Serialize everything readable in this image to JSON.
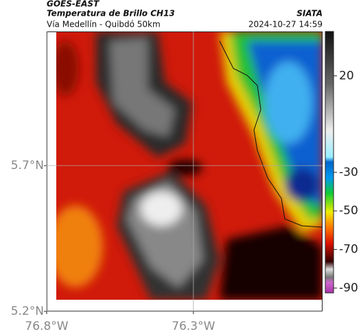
{
  "header": {
    "satellite": "GOES-EAST",
    "product": "Temperatura de Brillo CH13",
    "route": "Vía Medellín - Quibdó 50km",
    "source": "SIATA",
    "timestamp": "2024-10-27 14:59"
  },
  "map": {
    "xlim": [
      -76.8,
      -75.86
    ],
    "ylim": [
      5.2,
      6.16
    ],
    "xticks": [
      {
        "value": -76.8,
        "label": "76.8°W"
      },
      {
        "value": -76.3,
        "label": "76.3°W"
      }
    ],
    "yticks": [
      {
        "value": 5.2,
        "label": "5.2°N"
      },
      {
        "value": 5.7,
        "label": "5.7°N"
      }
    ],
    "grid": true
  },
  "colorbar": {
    "clim": [
      -92.5,
      43
    ],
    "ticks": [
      20,
      -30,
      -50,
      -70,
      -90
    ]
  }
}
